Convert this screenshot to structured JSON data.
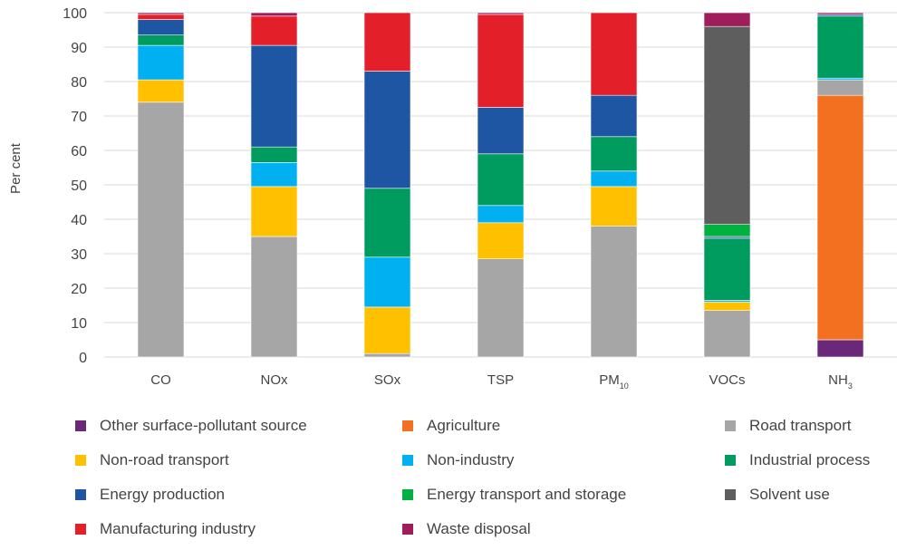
{
  "chart_data": {
    "type": "bar",
    "stacked": true,
    "title": "",
    "xlabel": "",
    "ylabel": "Per cent",
    "ylim": [
      0,
      100
    ],
    "yticks": [
      0,
      10,
      20,
      30,
      40,
      50,
      60,
      70,
      80,
      90,
      100
    ],
    "grid": true,
    "legend_position": "bottom",
    "categories": [
      {
        "base": "CO",
        "sub": ""
      },
      {
        "base": "NOx",
        "sub": ""
      },
      {
        "base": "SOx",
        "sub": ""
      },
      {
        "base": "TSP",
        "sub": ""
      },
      {
        "base": "PM",
        "sub": "10"
      },
      {
        "base": "VOCs",
        "sub": ""
      },
      {
        "base": "NH",
        "sub": "3"
      }
    ],
    "series": [
      {
        "name": "Other surface-pollutant source",
        "color": "#6a2878",
        "values": [
          0,
          0,
          0,
          0,
          0,
          0,
          5
        ]
      },
      {
        "name": "Agriculture",
        "color": "#f37021",
        "values": [
          0,
          0,
          0,
          0,
          0,
          0,
          71
        ]
      },
      {
        "name": "Road transport",
        "color": "#a6a6a6",
        "values": [
          74,
          35,
          1,
          28.5,
          38,
          13.5,
          4.5
        ]
      },
      {
        "name": "Non-road transport",
        "color": "#ffc000",
        "values": [
          6.5,
          14.5,
          13.5,
          10.5,
          11.5,
          2.5,
          0
        ]
      },
      {
        "name": "Non-industry",
        "color": "#00b0f0",
        "values": [
          10,
          7,
          14.5,
          5,
          4.5,
          0.5,
          0.5
        ]
      },
      {
        "name": "Industrial process",
        "color": "#009b5e",
        "values": [
          3,
          4.5,
          20,
          15,
          10,
          18,
          18
        ]
      },
      {
        "name": "Energy production",
        "color": "#1f56a3",
        "values": [
          4.5,
          29.5,
          34,
          13.5,
          12,
          0.5,
          0.5
        ]
      },
      {
        "name": "Energy transport and storage",
        "color": "#00b140",
        "values": [
          0,
          0,
          0,
          0,
          0,
          3.5,
          0
        ]
      },
      {
        "name": "Solvent use",
        "color": "#5e5e5e",
        "values": [
          0,
          0,
          0,
          0,
          0,
          57.5,
          0
        ]
      },
      {
        "name": "Manufacturing industry",
        "color": "#e3202a",
        "values": [
          1.5,
          8.5,
          17,
          27,
          24,
          0,
          0
        ]
      },
      {
        "name": "Waste disposal",
        "color": "#a01d5c",
        "values": [
          0.5,
          1,
          0,
          0.5,
          0,
          4,
          0.5
        ]
      }
    ]
  }
}
